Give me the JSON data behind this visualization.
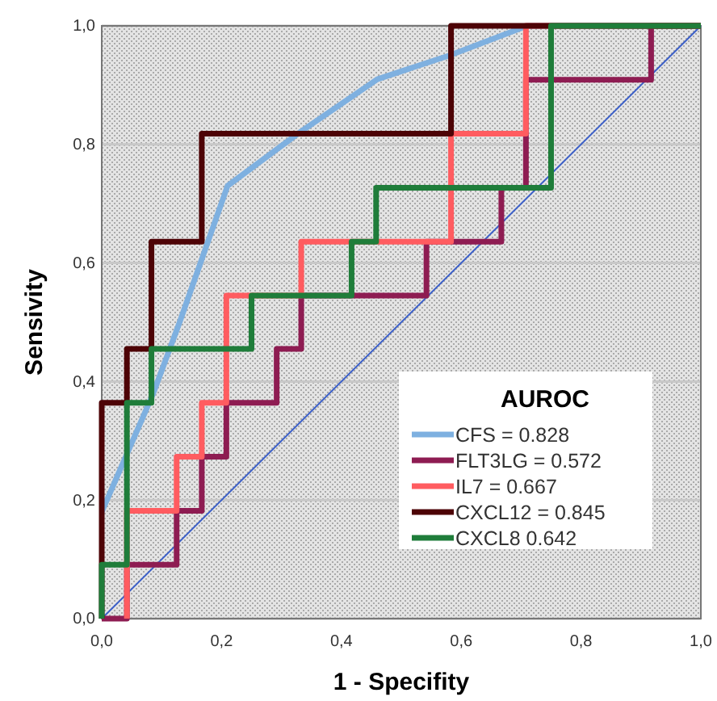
{
  "chart_data": {
    "type": "line",
    "xlabel": "1 - Specifity",
    "ylabel": "Sensivity",
    "legend_title": "AUROC",
    "legend": "bottom right",
    "grid": "y",
    "xlim": [
      0,
      1
    ],
    "ylim": [
      0,
      1
    ],
    "xticks": [
      {
        "value": 0,
        "label": "0,0"
      },
      {
        "value": 0.2,
        "label": "0,2"
      },
      {
        "value": 0.4,
        "label": "0,4"
      },
      {
        "value": 0.6,
        "label": "0,6"
      },
      {
        "value": 0.8,
        "label": "0,8"
      },
      {
        "value": 1,
        "label": "1,0"
      }
    ],
    "yticks": [
      {
        "value": 0,
        "label": "0,0"
      },
      {
        "value": 0.2,
        "label": "0,2"
      },
      {
        "value": 0.4,
        "label": "0,4"
      },
      {
        "value": 0.6,
        "label": "0,6"
      },
      {
        "value": 0.8,
        "label": "0,8"
      },
      {
        "value": 1,
        "label": "1,0"
      }
    ],
    "series": [
      {
        "color": "#3b5fc8",
        "x": [
          0,
          1
        ],
        "values": [
          0,
          1
        ]
      },
      {
        "name": "CFS = 0.828",
        "color": "#7eb0e0",
        "x": [
          0,
          0.086,
          0.13,
          0.21,
          0.33,
          0.46,
          0.58,
          0.71,
          1
        ],
        "values": [
          0.18,
          0.38,
          0.5,
          0.73,
          0.82,
          0.91,
          0.95,
          1,
          1
        ]
      },
      {
        "name": "FLT3LG = 0.572",
        "color": "#8e1c52",
        "x": [
          0,
          0.042,
          0.042,
          0.125,
          0.125,
          0.167,
          0.167,
          0.208,
          0.208,
          0.292,
          0.292,
          0.333,
          0.333,
          0.542,
          0.542,
          0.667,
          0.667,
          0.708,
          0.708,
          0.917,
          0.917,
          1
        ],
        "values": [
          0,
          0,
          0.091,
          0.091,
          0.182,
          0.182,
          0.273,
          0.273,
          0.364,
          0.364,
          0.455,
          0.455,
          0.545,
          0.545,
          0.636,
          0.636,
          0.727,
          0.727,
          0.909,
          0.909,
          1,
          1
        ]
      },
      {
        "name": "IL7 = 0.667",
        "color": "#ff5c60",
        "x": [
          0.042,
          0.042,
          0.125,
          0.125,
          0.167,
          0.167,
          0.208,
          0.208,
          0.333,
          0.333,
          0.583,
          0.583,
          0.708,
          0.708,
          1
        ],
        "values": [
          0,
          0.182,
          0.182,
          0.273,
          0.273,
          0.364,
          0.364,
          0.545,
          0.545,
          0.636,
          0.636,
          0.818,
          0.818,
          1,
          1
        ]
      },
      {
        "name": "CXCL12 = 0.845",
        "color": "#4d0306",
        "x": [
          0,
          0,
          0.042,
          0.042,
          0.083,
          0.083,
          0.167,
          0.167,
          0.583,
          0.583,
          1
        ],
        "values": [
          0,
          0.364,
          0.364,
          0.455,
          0.455,
          0.636,
          0.636,
          0.818,
          0.818,
          1,
          1
        ]
      },
      {
        "name": "CXCL8 0.642",
        "color": "#1f7d3a",
        "x": [
          0,
          0,
          0.042,
          0.042,
          0.083,
          0.083,
          0.25,
          0.25,
          0.417,
          0.417,
          0.458,
          0.458,
          0.75,
          0.75,
          1
        ],
        "values": [
          0,
          0.091,
          0.091,
          0.364,
          0.364,
          0.455,
          0.455,
          0.545,
          0.545,
          0.636,
          0.636,
          0.727,
          0.727,
          1,
          1
        ]
      }
    ]
  }
}
